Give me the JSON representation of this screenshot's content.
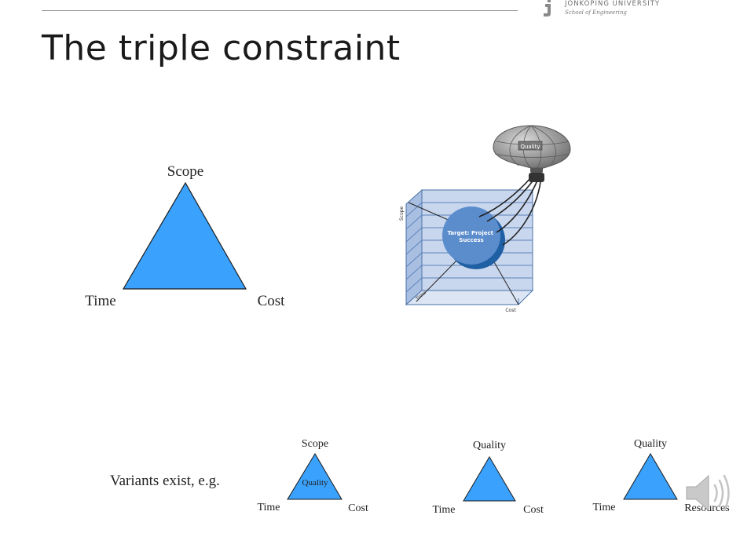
{
  "header": {
    "university": "JÖNKÖPING UNIVERSITY",
    "school": "School of Engineering"
  },
  "title": "The triple constraint",
  "main_triangle": {
    "top": "Scope",
    "left": "Time",
    "right": "Cost"
  },
  "box_diagram": {
    "vertical_axis": "Scope",
    "depth_axis": "Time",
    "horizontal_axis": "Cost",
    "target": "Target: Project Success",
    "balloon": "Quality"
  },
  "variants_label": "Variants exist, e.g.",
  "variants": [
    {
      "top": "Scope",
      "left": "Time",
      "right": "Cost",
      "center": "Quality"
    },
    {
      "top": "Quality",
      "left": "Time",
      "right": "Cost"
    },
    {
      "top": "Quality",
      "left": "Time",
      "right": "Resources"
    }
  ],
  "colors": {
    "triangle_fill": "#3aa1fc",
    "box_fill": "#b6c9e8",
    "target_fill": "#5b8ccc",
    "target_shadow": "#1f5fa3"
  },
  "icons": [
    "university-logo-icon",
    "speaker-icon"
  ]
}
